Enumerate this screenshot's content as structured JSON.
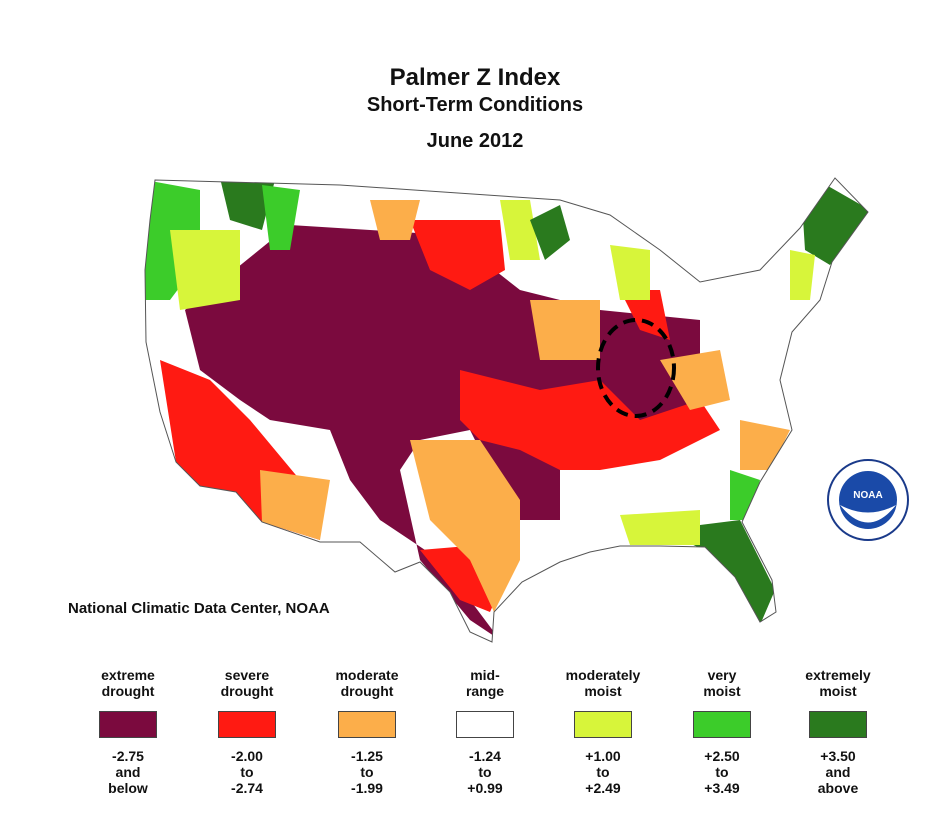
{
  "title": "Palmer Z Index",
  "subtitle": "Short-Term Conditions",
  "date": "June 2012",
  "credit": "National Climatic Data Center, NOAA",
  "logo_text": "NOAA",
  "legend": [
    {
      "label": [
        "extreme",
        "drought"
      ],
      "range": [
        "-2.75",
        "and",
        "below"
      ],
      "color": "#7b0a3e"
    },
    {
      "label": [
        "severe",
        "drought"
      ],
      "range": [
        "-2.00",
        "to",
        "-2.74"
      ],
      "color": "#ff1a12"
    },
    {
      "label": [
        "moderate",
        "drought"
      ],
      "range": [
        "-1.25",
        "to",
        "-1.99"
      ],
      "color": "#fcae4a"
    },
    {
      "label": [
        "mid-",
        "range"
      ],
      "range": [
        "-1.24",
        "to",
        "+0.99"
      ],
      "color": "#ffffff"
    },
    {
      "label": [
        "moderately",
        "moist"
      ],
      "range": [
        "+1.00",
        "to",
        "+2.49"
      ],
      "color": "#d7f53a"
    },
    {
      "label": [
        "very",
        "moist"
      ],
      "range": [
        "+2.50",
        "to",
        "+3.49"
      ],
      "color": "#3ccc2a"
    },
    {
      "label": [
        "extremely",
        "moist"
      ],
      "range": [
        "+3.50",
        "and",
        "above"
      ],
      "color": "#2a7a1e"
    }
  ]
}
